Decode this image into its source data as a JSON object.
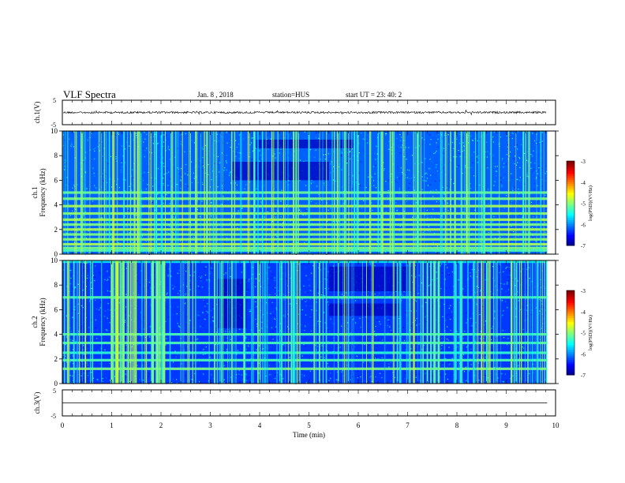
{
  "header": {
    "title": "VLF Spectra",
    "date": "Jan. 8 , 2018",
    "station": "station=HUS",
    "start_ut": "start UT =  23: 40: 2"
  },
  "chart_data": [
    {
      "type": "line",
      "panel": "ch1-waveform",
      "ylabel": "ch.1(V)",
      "ylim": [
        -5,
        5
      ],
      "yticks": [
        "5",
        "-5"
      ],
      "xlim": [
        0,
        10
      ],
      "series": [
        {
          "values_description_level": 0
        }
      ]
    },
    {
      "type": "heatmap",
      "panel": "ch1-spectrogram",
      "ylabel_line1": "ch.1",
      "ylabel_line2": "Frequency (kHz)",
      "ylim": [
        0,
        10
      ],
      "yticks": [
        "0",
        "2",
        "4",
        "6",
        "8",
        "10"
      ],
      "xlim": [
        0,
        9.83
      ],
      "colorbar": {
        "label": "log(PSD)(V²/Hz)",
        "range": [
          -7,
          -3
        ],
        "ticks": [
          "-3",
          "-4",
          "-5",
          "-6",
          "-7"
        ]
      },
      "bands_khz": [
        0.3,
        0.5,
        0.8,
        1.2,
        1.6,
        2.0,
        2.4,
        2.8,
        3.3,
        3.9,
        4.5,
        5.0
      ]
    },
    {
      "type": "heatmap",
      "panel": "ch2-spectrogram",
      "ylabel_line1": "ch.2",
      "ylabel_line2": "Frequency (kHz)",
      "ylim": [
        0,
        10
      ],
      "yticks": [
        "0",
        "2",
        "4",
        "6",
        "8",
        "10"
      ],
      "xlim": [
        0,
        9.83
      ],
      "colorbar": {
        "label": "log(PSD)(V²/Hz)",
        "range": [
          -7,
          -3
        ],
        "ticks": [
          "-3",
          "-4",
          "-5",
          "-6",
          "-7"
        ]
      },
      "bands_khz": [
        1.2,
        1.9,
        2.5,
        3.3,
        4.0,
        7.0,
        9.9
      ]
    },
    {
      "type": "line",
      "panel": "ch3-waveform",
      "ylabel": "ch.3(V)",
      "ylim": [
        -5,
        5
      ],
      "yticks": [
        "5",
        "-5"
      ],
      "xlim": [
        0,
        10
      ],
      "xlabel": "Time (min)",
      "xticks": [
        "0",
        "1",
        "2",
        "3",
        "4",
        "5",
        "6",
        "7",
        "8",
        "9",
        "10"
      ],
      "series": [
        {
          "values": [
            0,
            0
          ]
        }
      ]
    }
  ]
}
